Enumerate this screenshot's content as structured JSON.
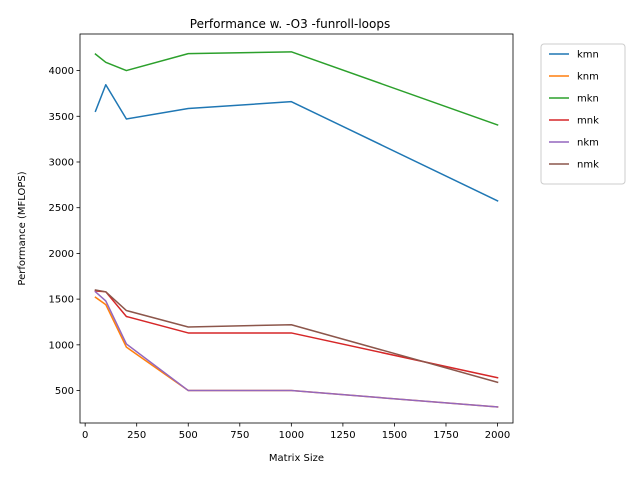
{
  "chart_data": {
    "type": "line",
    "title": "Performance w. -O3 -funroll-loops",
    "xlabel": "Matrix Size",
    "ylabel": "Performance (MFLOPS)",
    "xlim": [
      -25,
      2075
    ],
    "ylim": [
      145,
      4400
    ],
    "xticks": [
      0,
      250,
      500,
      750,
      1000,
      1250,
      1500,
      1750,
      2000
    ],
    "yticks": [
      500,
      1000,
      1500,
      2000,
      2500,
      3000,
      3500,
      4000
    ],
    "grid": false,
    "legend_position": "outside-right-top",
    "x": [
      50,
      100,
      200,
      500,
      1000,
      2000
    ],
    "series": [
      {
        "name": "kmn",
        "color": "#1f77b4",
        "values": [
          3555,
          3845,
          3470,
          3585,
          3660,
          2575
        ]
      },
      {
        "name": "knm",
        "color": "#ff7f0e",
        "values": [
          1520,
          1440,
          975,
          500,
          500,
          320
        ]
      },
      {
        "name": "mkn",
        "color": "#2ca02c",
        "values": [
          4180,
          4090,
          4000,
          4185,
          4205,
          3405
        ]
      },
      {
        "name": "mnk",
        "color": "#d62728",
        "values": [
          1590,
          1580,
          1310,
          1130,
          1130,
          640
        ]
      },
      {
        "name": "nkm",
        "color": "#9467bd",
        "values": [
          1580,
          1480,
          1010,
          500,
          500,
          320
        ]
      },
      {
        "name": "nmk",
        "color": "#8c564b",
        "values": [
          1600,
          1580,
          1375,
          1195,
          1220,
          590
        ]
      }
    ]
  }
}
